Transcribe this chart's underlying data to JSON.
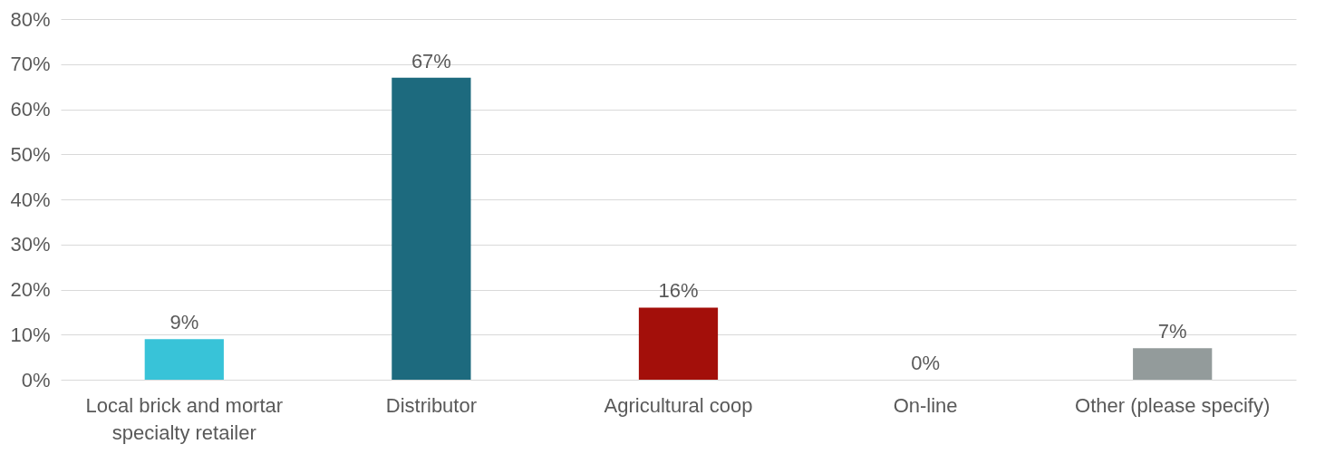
{
  "chart_data": {
    "type": "bar",
    "categories": [
      "Local brick and mortar specialty retailer",
      "Distributor",
      "Agricultural coop",
      "On-line",
      "Other (please specify)"
    ],
    "values": [
      9,
      67,
      16,
      0,
      7
    ],
    "colors": [
      "#38c3d8",
      "#1d6a7e",
      "#a30f0a",
      "#7f7f7f",
      "#939b9b"
    ],
    "value_labels": [
      "9%",
      "67%",
      "16%",
      "0%",
      "7%"
    ],
    "ylim": [
      0,
      80
    ],
    "yticks": [
      {
        "value": 0,
        "label": "0%"
      },
      {
        "value": 10,
        "label": "10%"
      },
      {
        "value": 20,
        "label": "20%"
      },
      {
        "value": 30,
        "label": "30%"
      },
      {
        "value": 40,
        "label": "40%"
      },
      {
        "value": 50,
        "label": "50%"
      },
      {
        "value": 60,
        "label": "60%"
      },
      {
        "value": 70,
        "label": "70%"
      },
      {
        "value": 80,
        "label": "80%"
      }
    ],
    "grid": "y"
  }
}
